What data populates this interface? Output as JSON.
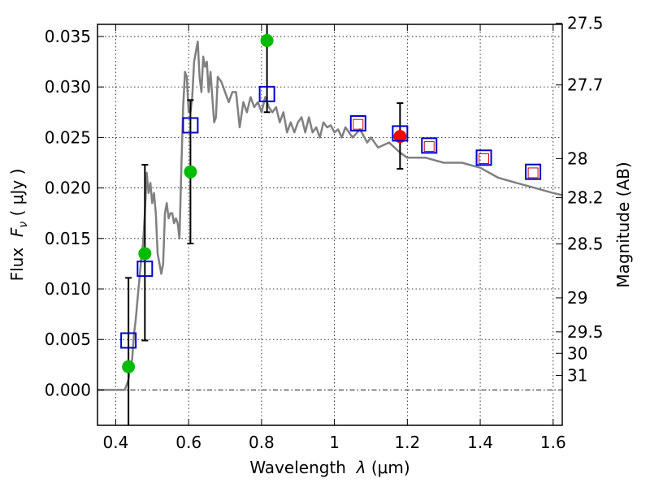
{
  "chart_data": {
    "type": "scatter",
    "xlabel_prefix": "Wavelength  ",
    "xlabel_symbol": "λ",
    "xlabel_unit": " (μm)",
    "ylabel_prefix": "Flux  ",
    "ylabel_symbol": "F",
    "ylabel_sub": "ν",
    "ylabel_unit": " ( μJy )",
    "y2label": "Magnitude (AB)",
    "xlim": [
      0.35,
      1.625
    ],
    "ylim": [
      -0.0035,
      0.0362
    ],
    "x_ticks": [
      0.4,
      0.6,
      0.8,
      1.0,
      1.2,
      1.4,
      1.6
    ],
    "x_tick_labels": [
      "0.4",
      "0.6",
      "0.8",
      "1",
      "1.2",
      "1.4",
      "1.6"
    ],
    "y_ticks": [
      0.0,
      0.005,
      0.01,
      0.015,
      0.02,
      0.025,
      0.03,
      0.035
    ],
    "y_tick_labels": [
      "0.000",
      "0.005",
      "0.010",
      "0.015",
      "0.020",
      "0.025",
      "0.030",
      "0.035"
    ],
    "mag_ticks": [
      27.5,
      27.7,
      28,
      28.2,
      28.5,
      29,
      29.5,
      30,
      31
    ],
    "mag_tick_labels": [
      "27.5",
      "27.7",
      "28",
      "28.2",
      "28.5",
      "29",
      "29.5",
      "30",
      "31"
    ],
    "model_sed": {
      "name": "model spectrum",
      "color": "#808080",
      "x": [
        0.35,
        0.425,
        0.43,
        0.435,
        0.44,
        0.445,
        0.45,
        0.455,
        0.46,
        0.465,
        0.47,
        0.475,
        0.48,
        0.485,
        0.49,
        0.495,
        0.5,
        0.505,
        0.51,
        0.515,
        0.52,
        0.525,
        0.53,
        0.535,
        0.54,
        0.545,
        0.55,
        0.555,
        0.56,
        0.565,
        0.57,
        0.575,
        0.58,
        0.585,
        0.59,
        0.595,
        0.6,
        0.605,
        0.61,
        0.615,
        0.62,
        0.625,
        0.63,
        0.635,
        0.64,
        0.645,
        0.65,
        0.655,
        0.66,
        0.665,
        0.67,
        0.675,
        0.68,
        0.69,
        0.7,
        0.71,
        0.72,
        0.73,
        0.74,
        0.75,
        0.76,
        0.77,
        0.78,
        0.79,
        0.8,
        0.81,
        0.82,
        0.83,
        0.84,
        0.85,
        0.86,
        0.87,
        0.88,
        0.89,
        0.9,
        0.91,
        0.92,
        0.93,
        0.94,
        0.95,
        0.96,
        0.97,
        0.98,
        0.99,
        1.0,
        1.01,
        1.02,
        1.03,
        1.05,
        1.07,
        1.09,
        1.1,
        1.12,
        1.15,
        1.18,
        1.2,
        1.25,
        1.3,
        1.35,
        1.4,
        1.45,
        1.5,
        1.55,
        1.6,
        1.625
      ],
      "y": [
        0.0,
        0.0,
        0.0005,
        0.001,
        0.0025,
        0.003,
        0.0055,
        0.007,
        0.009,
        0.011,
        0.013,
        0.0145,
        0.0175,
        0.0215,
        0.0195,
        0.0205,
        0.0185,
        0.0195,
        0.0175,
        0.0135,
        0.0125,
        0.0115,
        0.0125,
        0.0175,
        0.0185,
        0.017,
        0.0175,
        0.0175,
        0.0165,
        0.017,
        0.0165,
        0.015,
        0.022,
        0.028,
        0.0315,
        0.031,
        0.0275,
        0.0275,
        0.029,
        0.0325,
        0.0335,
        0.0345,
        0.031,
        0.0295,
        0.033,
        0.032,
        0.0325,
        0.0295,
        0.0315,
        0.029,
        0.0265,
        0.027,
        0.031,
        0.0305,
        0.0295,
        0.0285,
        0.0295,
        0.0295,
        0.026,
        0.0285,
        0.0275,
        0.029,
        0.028,
        0.0285,
        0.0275,
        0.029,
        0.028,
        0.0275,
        0.028,
        0.0265,
        0.0275,
        0.0255,
        0.0265,
        0.0255,
        0.0265,
        0.027,
        0.0255,
        0.027,
        0.0255,
        0.026,
        0.025,
        0.0265,
        0.026,
        0.0262,
        0.0255,
        0.0258,
        0.025,
        0.026,
        0.025,
        0.0258,
        0.0245,
        0.025,
        0.024,
        0.0245,
        0.0235,
        0.023,
        0.023,
        0.0225,
        0.0225,
        0.022,
        0.021,
        0.0205,
        0.02,
        0.0195,
        0.0193
      ]
    },
    "observed_points": {
      "name": "observed flux",
      "color": "#00bb00",
      "x": [
        0.435,
        0.48,
        0.605,
        0.815
      ],
      "y": [
        0.0023,
        0.0135,
        0.0216,
        0.0346
      ]
    },
    "observed_errorbars": {
      "name": "error bars",
      "color": "#000000",
      "x": [
        0.435,
        0.48,
        0.605,
        0.815,
        1.18
      ],
      "low": [
        -0.0035,
        0.0049,
        0.0145,
        0.0275,
        0.0219
      ],
      "high": [
        0.0111,
        0.0223,
        0.0287,
        0.0362,
        0.0284
      ]
    },
    "highlight_point": {
      "name": "highlighted flux",
      "color": "#ff0000",
      "x": [
        1.18
      ],
      "y": [
        0.0251
      ]
    },
    "model_bands": {
      "name": "model band flux",
      "color": "#0000cc",
      "x": [
        0.435,
        0.48,
        0.605,
        0.815,
        1.065,
        1.18,
        1.26,
        1.41,
        1.545
      ],
      "y": [
        0.0049,
        0.012,
        0.0262,
        0.0293,
        0.0264,
        0.0254,
        0.0242,
        0.023,
        0.0216
      ]
    },
    "inner_squares": {
      "name": "inner band markers",
      "color": "#cc0000",
      "x": [
        1.065,
        1.26,
        1.41,
        1.545
      ],
      "y": [
        0.0263,
        0.0241,
        0.0229,
        0.0215
      ]
    }
  }
}
